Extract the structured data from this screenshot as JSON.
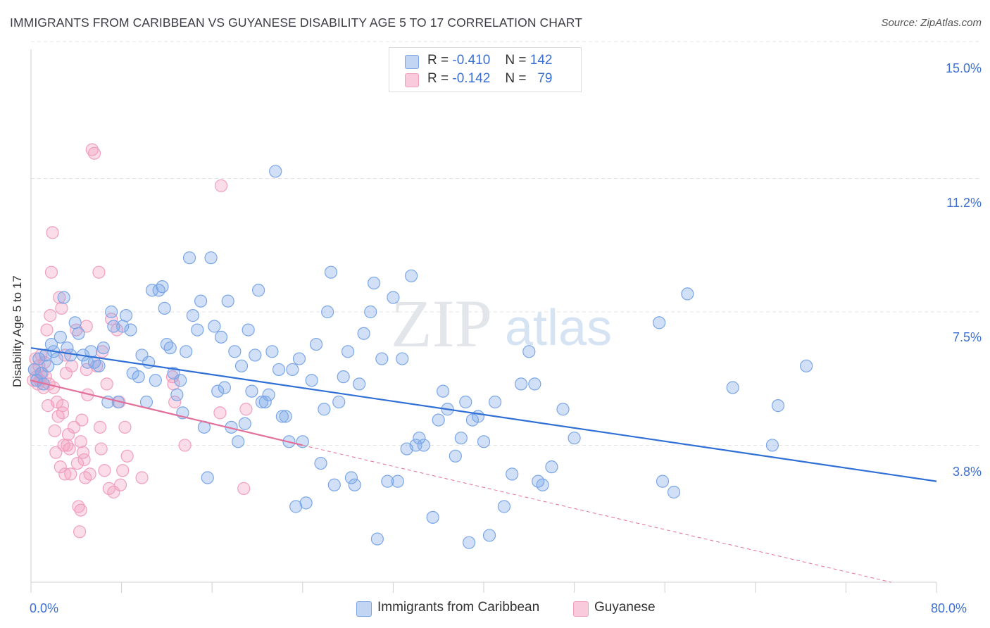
{
  "header": {
    "title": "IMMIGRANTS FROM CARIBBEAN VS GUYANESE DISABILITY AGE 5 TO 17 CORRELATION CHART",
    "source": "Source: ZipAtlas.com"
  },
  "watermark": {
    "zip": "ZIP",
    "atlas": "atlas"
  },
  "legend": {
    "rows": [
      {
        "r_label": "R =",
        "r_value": "-0.410",
        "n_label": "N =",
        "n_value": "142",
        "color": "#7aa6e8"
      },
      {
        "r_label": "R =",
        "r_value": "-0.142",
        "n_label": "N =",
        "n_value": "79",
        "color": "#f19fbd"
      }
    ]
  },
  "bottom_legend": [
    {
      "label": "Immigrants from Caribbean",
      "color": "#7aa6e8"
    },
    {
      "label": "Guyanese",
      "color": "#f19fbd"
    }
  ],
  "chart_data": {
    "type": "scatter",
    "title": "IMMIGRANTS FROM CARIBBEAN VS GUYANESE DISABILITY AGE 5 TO 17 CORRELATION CHART",
    "xlabel": "",
    "ylabel": "Disability Age 5 to 17",
    "xlim": [
      0,
      80
    ],
    "ylim": [
      0,
      15.7
    ],
    "x_tick_labels": [
      "0.0%",
      "80.0%"
    ],
    "y_ticks": [
      3.8,
      7.5,
      11.2,
      15.0
    ],
    "y_tick_labels": [
      "3.8%",
      "7.5%",
      "11.2%",
      "15.0%"
    ],
    "grid": true,
    "legend_position": "top-center",
    "series": [
      {
        "name": "Immigrants from Caribbean",
        "color": "#7aa6e8",
        "line_color": "#2f6fd6",
        "trend": {
          "x": [
            0,
            80
          ],
          "y": [
            6.5,
            2.8
          ]
        },
        "points": [
          [
            0.3,
            5.9
          ],
          [
            0.5,
            5.6
          ],
          [
            0.7,
            6.2
          ],
          [
            0.9,
            5.8
          ],
          [
            1.1,
            5.5
          ],
          [
            1.3,
            6.3
          ],
          [
            1.5,
            6.0
          ],
          [
            1.8,
            6.6
          ],
          [
            2.0,
            6.4
          ],
          [
            2.3,
            6.2
          ],
          [
            2.6,
            6.8
          ],
          [
            2.9,
            7.9
          ],
          [
            3.2,
            6.5
          ],
          [
            3.5,
            6.3
          ],
          [
            3.9,
            7.2
          ],
          [
            4.2,
            6.9
          ],
          [
            4.6,
            6.3
          ],
          [
            5.0,
            6.1
          ],
          [
            5.3,
            6.4
          ],
          [
            5.6,
            6.1
          ],
          [
            6.0,
            6.0
          ],
          [
            6.4,
            6.5
          ],
          [
            6.8,
            5.0
          ],
          [
            7.1,
            7.5
          ],
          [
            7.3,
            7.1
          ],
          [
            7.7,
            5.0
          ],
          [
            8.1,
            7.1
          ],
          [
            8.4,
            7.4
          ],
          [
            8.8,
            7.0
          ],
          [
            9.0,
            5.8
          ],
          [
            9.5,
            5.7
          ],
          [
            9.8,
            6.3
          ],
          [
            10.2,
            5.0
          ],
          [
            10.4,
            6.1
          ],
          [
            10.7,
            8.1
          ],
          [
            11.0,
            5.6
          ],
          [
            11.3,
            8.1
          ],
          [
            11.6,
            8.2
          ],
          [
            11.8,
            7.6
          ],
          [
            12.0,
            6.6
          ],
          [
            12.3,
            6.5
          ],
          [
            12.6,
            5.8
          ],
          [
            12.9,
            5.2
          ],
          [
            13.2,
            5.6
          ],
          [
            13.4,
            4.7
          ],
          [
            13.7,
            6.4
          ],
          [
            14.0,
            9.0
          ],
          [
            14.3,
            7.4
          ],
          [
            14.7,
            7.0
          ],
          [
            15.0,
            7.8
          ],
          [
            15.3,
            4.3
          ],
          [
            15.6,
            2.9
          ],
          [
            15.9,
            9.0
          ],
          [
            16.2,
            7.1
          ],
          [
            16.5,
            5.3
          ],
          [
            16.8,
            6.8
          ],
          [
            17.1,
            5.4
          ],
          [
            17.4,
            7.8
          ],
          [
            17.7,
            4.3
          ],
          [
            18.0,
            6.4
          ],
          [
            18.3,
            3.9
          ],
          [
            18.6,
            6.0
          ],
          [
            18.9,
            4.4
          ],
          [
            19.2,
            7.0
          ],
          [
            19.5,
            5.3
          ],
          [
            19.8,
            6.3
          ],
          [
            20.1,
            8.1
          ],
          [
            20.4,
            5.0
          ],
          [
            20.7,
            5.0
          ],
          [
            21.0,
            5.2
          ],
          [
            21.3,
            6.4
          ],
          [
            21.6,
            11.4
          ],
          [
            21.9,
            5.9
          ],
          [
            22.2,
            4.6
          ],
          [
            22.5,
            4.6
          ],
          [
            22.8,
            3.9
          ],
          [
            23.1,
            5.9
          ],
          [
            23.4,
            2.1
          ],
          [
            23.7,
            6.2
          ],
          [
            24.0,
            3.9
          ],
          [
            24.3,
            2.2
          ],
          [
            24.8,
            5.6
          ],
          [
            25.2,
            6.6
          ],
          [
            25.6,
            3.3
          ],
          [
            25.9,
            4.8
          ],
          [
            26.2,
            7.5
          ],
          [
            26.5,
            8.6
          ],
          [
            26.8,
            2.7
          ],
          [
            27.2,
            5.0
          ],
          [
            27.6,
            5.7
          ],
          [
            28.0,
            6.4
          ],
          [
            28.3,
            2.9
          ],
          [
            28.6,
            2.7
          ],
          [
            29.0,
            5.5
          ],
          [
            29.4,
            6.9
          ],
          [
            30.0,
            7.5
          ],
          [
            30.3,
            8.3
          ],
          [
            30.6,
            1.2
          ],
          [
            31.0,
            6.2
          ],
          [
            31.5,
            2.8
          ],
          [
            32.0,
            7.9
          ],
          [
            32.4,
            2.8
          ],
          [
            32.8,
            6.2
          ],
          [
            33.2,
            3.7
          ],
          [
            33.6,
            8.5
          ],
          [
            34.0,
            3.8
          ],
          [
            34.3,
            4.0
          ],
          [
            34.7,
            3.8
          ],
          [
            35.5,
            1.8
          ],
          [
            36.0,
            4.5
          ],
          [
            36.4,
            5.3
          ],
          [
            36.8,
            4.8
          ],
          [
            37.5,
            3.5
          ],
          [
            38.0,
            4.0
          ],
          [
            38.4,
            5.0
          ],
          [
            38.7,
            1.1
          ],
          [
            39.0,
            4.5
          ],
          [
            39.5,
            4.6
          ],
          [
            40.0,
            3.9
          ],
          [
            40.5,
            1.3
          ],
          [
            41.0,
            5.0
          ],
          [
            41.8,
            2.1
          ],
          [
            42.5,
            3.0
          ],
          [
            43.3,
            5.5
          ],
          [
            44.0,
            6.4
          ],
          [
            44.5,
            5.5
          ],
          [
            44.8,
            2.8
          ],
          [
            45.2,
            2.7
          ],
          [
            46.0,
            3.2
          ],
          [
            47.0,
            4.8
          ],
          [
            48.0,
            4.0
          ],
          [
            55.5,
            7.2
          ],
          [
            55.8,
            2.8
          ],
          [
            56.8,
            2.5
          ],
          [
            58.0,
            8.0
          ],
          [
            62.0,
            5.4
          ],
          [
            65.5,
            3.8
          ],
          [
            66.0,
            4.9
          ],
          [
            68.5,
            6.0
          ]
        ]
      },
      {
        "name": "Guyanese",
        "color": "#f19fbd",
        "line_color": "#e2709a",
        "trend": {
          "x": [
            0,
            24
          ],
          "y": [
            5.6,
            3.8
          ]
        },
        "trend_extension": {
          "x": [
            24,
            76
          ],
          "y": [
            3.8,
            0
          ]
        },
        "points": [
          [
            0.2,
            5.6
          ],
          [
            0.3,
            5.9
          ],
          [
            0.4,
            6.2
          ],
          [
            0.5,
            5.7
          ],
          [
            0.6,
            5.5
          ],
          [
            0.7,
            6.0
          ],
          [
            0.8,
            5.6
          ],
          [
            0.9,
            6.3
          ],
          [
            1.0,
            5.8
          ],
          [
            1.1,
            5.4
          ],
          [
            1.2,
            6.1
          ],
          [
            1.3,
            5.7
          ],
          [
            1.5,
            4.9
          ],
          [
            1.6,
            5.5
          ],
          [
            1.7,
            7.4
          ],
          [
            1.8,
            8.6
          ],
          [
            1.9,
            9.7
          ],
          [
            2.0,
            5.4
          ],
          [
            2.1,
            4.2
          ],
          [
            2.2,
            3.6
          ],
          [
            2.3,
            5.0
          ],
          [
            2.4,
            4.6
          ],
          [
            2.5,
            7.9
          ],
          [
            2.6,
            3.2
          ],
          [
            2.7,
            7.6
          ],
          [
            2.8,
            4.7
          ],
          [
            2.9,
            3.8
          ],
          [
            3.0,
            6.3
          ],
          [
            3.1,
            5.8
          ],
          [
            3.2,
            3.8
          ],
          [
            3.3,
            4.1
          ],
          [
            3.4,
            3.7
          ],
          [
            3.5,
            3.0
          ],
          [
            3.6,
            6.0
          ],
          [
            3.8,
            4.3
          ],
          [
            4.0,
            7.0
          ],
          [
            4.1,
            3.3
          ],
          [
            4.2,
            2.1
          ],
          [
            4.3,
            1.4
          ],
          [
            4.4,
            3.9
          ],
          [
            4.5,
            4.5
          ],
          [
            4.6,
            3.6
          ],
          [
            4.7,
            3.4
          ],
          [
            4.8,
            2.9
          ],
          [
            4.9,
            7.1
          ],
          [
            5.0,
            5.2
          ],
          [
            5.2,
            3.0
          ],
          [
            5.4,
            12.0
          ],
          [
            5.6,
            11.9
          ],
          [
            5.8,
            6.0
          ],
          [
            6.0,
            8.6
          ],
          [
            6.1,
            4.3
          ],
          [
            6.2,
            3.7
          ],
          [
            6.5,
            3.1
          ],
          [
            6.7,
            5.5
          ],
          [
            6.9,
            2.6
          ],
          [
            7.1,
            7.3
          ],
          [
            7.3,
            2.5
          ],
          [
            7.6,
            7.0
          ],
          [
            7.9,
            2.7
          ],
          [
            8.1,
            3.1
          ],
          [
            8.3,
            4.3
          ],
          [
            8.5,
            3.5
          ],
          [
            9.8,
            2.9
          ],
          [
            12.5,
            5.7
          ],
          [
            12.6,
            5.5
          ],
          [
            12.7,
            5.0
          ],
          [
            13.6,
            3.8
          ],
          [
            16.7,
            4.7
          ],
          [
            16.8,
            11.0
          ],
          [
            18.8,
            2.6
          ],
          [
            19.0,
            4.8
          ],
          [
            4.4,
            2.0
          ],
          [
            3.0,
            3.0
          ],
          [
            2.8,
            4.9
          ],
          [
            4.9,
            5.9
          ],
          [
            1.4,
            7.0
          ],
          [
            7.8,
            5.0
          ],
          [
            6.3,
            6.4
          ]
        ]
      }
    ]
  }
}
